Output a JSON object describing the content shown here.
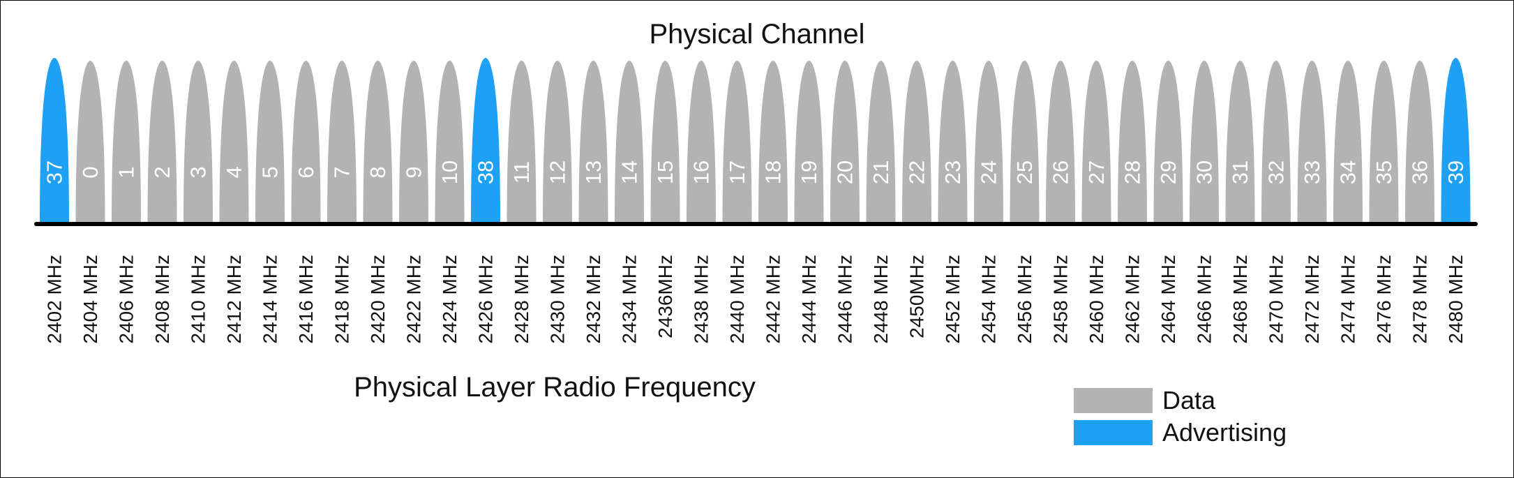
{
  "title_top": "Physical Channel",
  "title_bottom": "Physical Layer Radio Frequency",
  "colors": {
    "data": "#b3b3b3",
    "advertising": "#1ea0f5",
    "baseline": "#000000"
  },
  "legend": [
    {
      "label": "Data",
      "kind": "data"
    },
    {
      "label": "Advertising",
      "kind": "advertising"
    }
  ],
  "channels": [
    {
      "channel": "37",
      "freq": "2402 MHz",
      "kind": "advertising"
    },
    {
      "channel": "0",
      "freq": "2404 MHz",
      "kind": "data"
    },
    {
      "channel": "1",
      "freq": "2406 MHz",
      "kind": "data"
    },
    {
      "channel": "2",
      "freq": "2408 MHz",
      "kind": "data"
    },
    {
      "channel": "3",
      "freq": "2410 MHz",
      "kind": "data"
    },
    {
      "channel": "4",
      "freq": "2412 MHz",
      "kind": "data"
    },
    {
      "channel": "5",
      "freq": "2414 MHz",
      "kind": "data"
    },
    {
      "channel": "6",
      "freq": "2416 MHz",
      "kind": "data"
    },
    {
      "channel": "7",
      "freq": "2418 MHz",
      "kind": "data"
    },
    {
      "channel": "8",
      "freq": "2420 MHz",
      "kind": "data"
    },
    {
      "channel": "9",
      "freq": "2422 MHz",
      "kind": "data"
    },
    {
      "channel": "10",
      "freq": "2424 MHz",
      "kind": "data"
    },
    {
      "channel": "38",
      "freq": "2426 MHz",
      "kind": "advertising"
    },
    {
      "channel": "11",
      "freq": "2428 MHz",
      "kind": "data"
    },
    {
      "channel": "12",
      "freq": "2430 MHz",
      "kind": "data"
    },
    {
      "channel": "13",
      "freq": "2432 MHz",
      "kind": "data"
    },
    {
      "channel": "14",
      "freq": "2434 MHz",
      "kind": "data"
    },
    {
      "channel": "15",
      "freq": "2436MHz",
      "kind": "data"
    },
    {
      "channel": "16",
      "freq": "2438 MHz",
      "kind": "data"
    },
    {
      "channel": "17",
      "freq": "2440 MHz",
      "kind": "data"
    },
    {
      "channel": "18",
      "freq": "2442 MHz",
      "kind": "data"
    },
    {
      "channel": "19",
      "freq": "2444 MHz",
      "kind": "data"
    },
    {
      "channel": "20",
      "freq": "2446 MHz",
      "kind": "data"
    },
    {
      "channel": "21",
      "freq": "2448 MHz",
      "kind": "data"
    },
    {
      "channel": "22",
      "freq": "2450MHz",
      "kind": "data"
    },
    {
      "channel": "23",
      "freq": "2452 MHz",
      "kind": "data"
    },
    {
      "channel": "24",
      "freq": "2454 MHz",
      "kind": "data"
    },
    {
      "channel": "25",
      "freq": "2456 MHz",
      "kind": "data"
    },
    {
      "channel": "26",
      "freq": "2458 MHz",
      "kind": "data"
    },
    {
      "channel": "27",
      "freq": "2460 MHz",
      "kind": "data"
    },
    {
      "channel": "28",
      "freq": "2462 MHz",
      "kind": "data"
    },
    {
      "channel": "29",
      "freq": "2464 MHz",
      "kind": "data"
    },
    {
      "channel": "30",
      "freq": "2466 MHz",
      "kind": "data"
    },
    {
      "channel": "31",
      "freq": "2468 MHz",
      "kind": "data"
    },
    {
      "channel": "32",
      "freq": "2470 MHz",
      "kind": "data"
    },
    {
      "channel": "33",
      "freq": "2472 MHz",
      "kind": "data"
    },
    {
      "channel": "34",
      "freq": "2474 MHz",
      "kind": "data"
    },
    {
      "channel": "35",
      "freq": "2476 MHz",
      "kind": "data"
    },
    {
      "channel": "36",
      "freq": "2478 MHz",
      "kind": "data"
    },
    {
      "channel": "39",
      "freq": "2480 MHz",
      "kind": "advertising"
    }
  ]
}
